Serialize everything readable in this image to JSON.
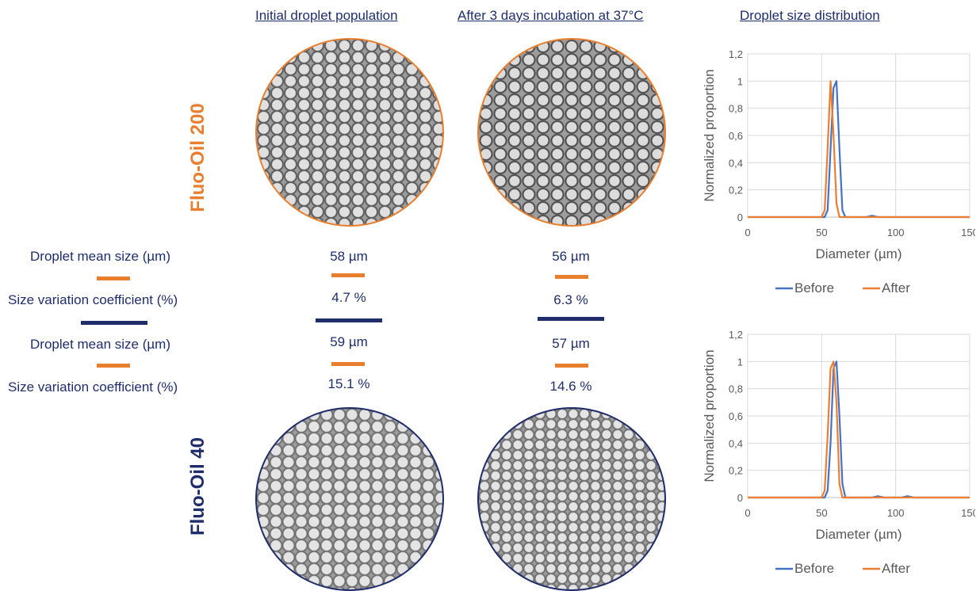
{
  "headers": {
    "initial": "Initial droplet population",
    "after": "After 3 days incubation at 37°C",
    "distribution": "Droplet size distribution"
  },
  "oils": [
    {
      "name": "Fluo-Oil 200",
      "color": "#e87f2e",
      "mean_label": "Droplet mean size (µm)",
      "cv_label": "Size variation coefficient (%)",
      "initial_mean": "58 µm",
      "initial_cv": "4.7 %",
      "after_mean": "56 µm",
      "after_cv": "6.3 %"
    },
    {
      "name": "Fluo-Oil 40",
      "color": "#1f2d6b",
      "mean_label": "Droplet mean size (µm)",
      "cv_label": "Size variation coefficient (%)",
      "initial_mean": "59 µm",
      "initial_cv": "15.1 %",
      "after_mean": "57 µm",
      "after_cv": "14.6 %"
    }
  ],
  "chart_data": [
    {
      "type": "line",
      "xlabel": "Diameter (µm)",
      "ylabel": "Normalized proportion",
      "xlim": [
        0,
        150
      ],
      "ylim": [
        0,
        1.2
      ],
      "xticks": [
        "0",
        "50",
        "100",
        "150"
      ],
      "yticks": [
        "0",
        "0,2",
        "0,4",
        "0,6",
        "0,8",
        "1",
        "1,2"
      ],
      "grid": true,
      "legend_position": "bottom",
      "series": [
        {
          "name": "Before",
          "color": "#4472c4",
          "x": [
            0,
            52,
            54,
            56,
            58,
            60,
            62,
            64,
            66,
            80,
            84,
            88,
            150
          ],
          "y": [
            0,
            0,
            0.05,
            0.5,
            0.95,
            1.0,
            0.5,
            0.05,
            0,
            0,
            0.01,
            0,
            0
          ]
        },
        {
          "name": "After",
          "color": "#ed7d31",
          "x": [
            0,
            50,
            52,
            54,
            56,
            58,
            60,
            62,
            64,
            80,
            150
          ],
          "y": [
            0,
            0,
            0.05,
            0.5,
            1.0,
            0.6,
            0.1,
            0,
            0,
            0,
            0
          ]
        }
      ]
    },
    {
      "type": "line",
      "xlabel": "Diameter (µm)",
      "ylabel": "Normalized proportion",
      "xlim": [
        0,
        150
      ],
      "ylim": [
        0,
        1.2
      ],
      "xticks": [
        "0",
        "50",
        "100",
        "150"
      ],
      "yticks": [
        "0",
        "0,2",
        "0,4",
        "0,6",
        "0,8",
        "1",
        "1,2"
      ],
      "grid": true,
      "legend_position": "bottom",
      "series": [
        {
          "name": "Before",
          "color": "#4472c4",
          "x": [
            0,
            52,
            54,
            56,
            58,
            60,
            62,
            64,
            66,
            84,
            88,
            92,
            104,
            108,
            112,
            150
          ],
          "y": [
            0,
            0,
            0.05,
            0.4,
            0.95,
            1.0,
            0.6,
            0.1,
            0,
            0,
            0.01,
            0,
            0,
            0.01,
            0,
            0
          ]
        },
        {
          "name": "After",
          "color": "#ed7d31",
          "x": [
            0,
            50,
            52,
            54,
            56,
            58,
            60,
            62,
            64,
            66,
            150
          ],
          "y": [
            0,
            0,
            0.05,
            0.45,
            0.95,
            1.0,
            0.7,
            0.1,
            0,
            0,
            0
          ]
        }
      ]
    }
  ]
}
